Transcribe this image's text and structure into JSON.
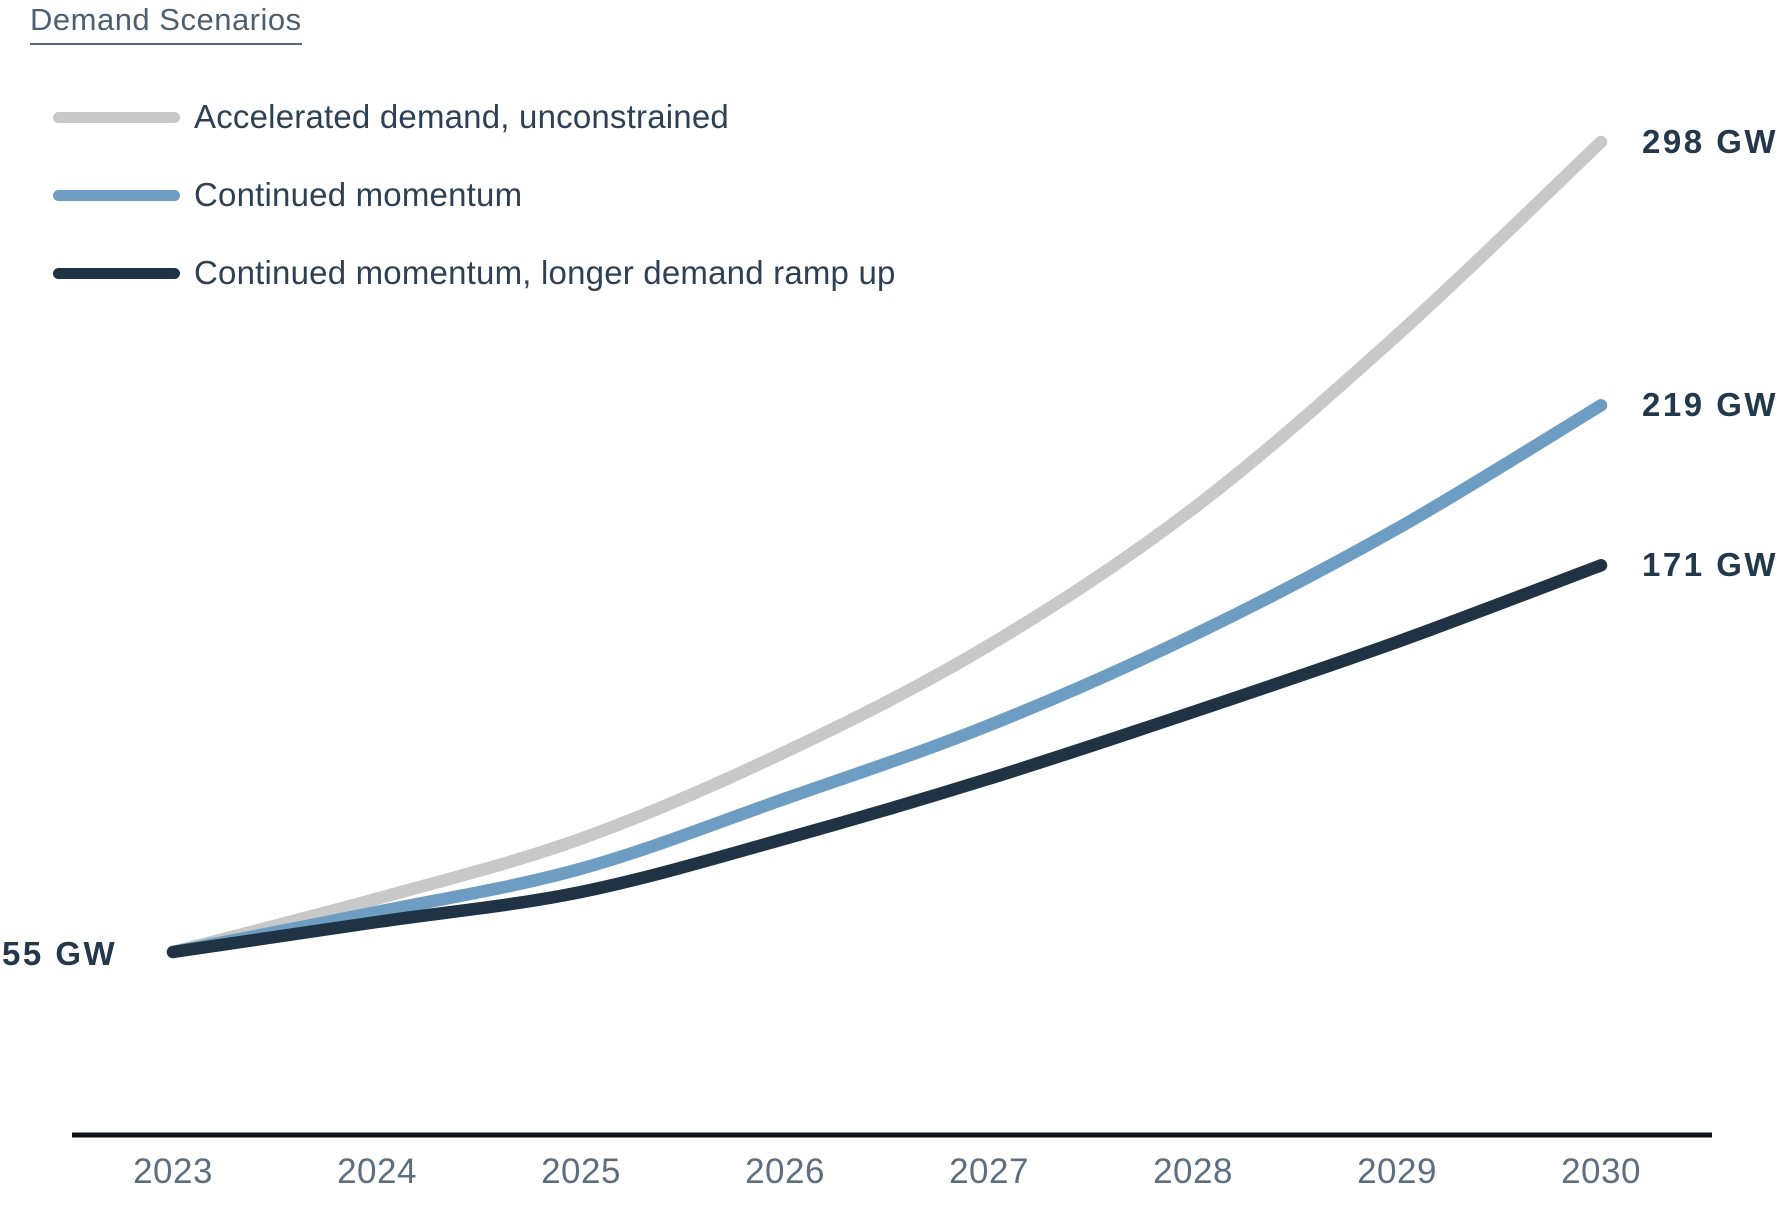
{
  "title": "Demand Scenarios",
  "chart_data": {
    "type": "line",
    "x": [
      2023,
      2024,
      2025,
      2026,
      2027,
      2028,
      2029,
      2030
    ],
    "xlabel": "",
    "ylabel": "GW",
    "grid": false,
    "legend_position": "top-left",
    "start_label": "55 GW",
    "series": [
      {
        "name": "Accelerated demand, unconstrained",
        "color": "#c8c8c8",
        "values": [
          55,
          71,
          89,
          115,
          147,
          188,
          240,
          298
        ],
        "end_label": "298 GW"
      },
      {
        "name": "Continued momentum",
        "color": "#6d9dc3",
        "values": [
          55,
          67,
          80,
          101,
          123,
          150,
          182,
          219
        ],
        "end_label": "219 GW"
      },
      {
        "name": "Continued momentum, longer demand ramp up",
        "color": "#1f3345",
        "values": [
          55,
          64,
          73,
          89,
          107,
          127,
          148,
          171
        ],
        "end_label": "171 GW"
      }
    ]
  },
  "colors": {
    "axis": "#0d1117",
    "title_text": "#4d5f71",
    "legend_text": "#2e4154",
    "tick_text": "#5d6e80",
    "value_text": "#24384c"
  }
}
